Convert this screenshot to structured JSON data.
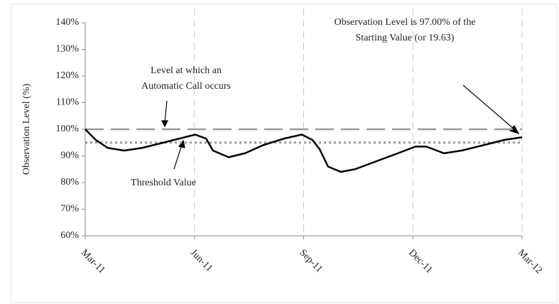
{
  "chart_data": {
    "type": "line",
    "y_label": "Observation Level (%)",
    "xlim": [
      0,
      12
    ],
    "xticks": [
      {
        "value": 0,
        "label": "Mar-11"
      },
      {
        "value": 3,
        "label": "Jun-11"
      },
      {
        "value": 6,
        "label": "Sep-11"
      },
      {
        "value": 9,
        "label": "Dec-11"
      },
      {
        "value": 12,
        "label": "Mar-12"
      }
    ],
    "ylim": [
      60,
      140
    ],
    "yticks": [
      {
        "value": 60,
        "label": "60%"
      },
      {
        "value": 70,
        "label": "70%"
      },
      {
        "value": 80,
        "label": "80%"
      },
      {
        "value": 90,
        "label": "90%"
      },
      {
        "value": 100,
        "label": "100%"
      },
      {
        "value": 110,
        "label": "110%"
      },
      {
        "value": 120,
        "label": "120%"
      },
      {
        "value": 130,
        "label": "130%"
      },
      {
        "value": 140,
        "label": "140%"
      }
    ],
    "grid": "x",
    "x": [
      0,
      0.29,
      0.62,
      1.07,
      1.56,
      2.15,
      2.73,
      3.02,
      3.32,
      3.51,
      3.94,
      4.39,
      4.88,
      5.46,
      5.95,
      6.24,
      6.44,
      6.67,
      7.02,
      7.41,
      8.0,
      8.59,
      9.07,
      9.37,
      9.85,
      10.34,
      10.93,
      11.51,
      12
    ],
    "series": [
      {
        "color": "#000000",
        "values": [
          100,
          96,
          93,
          92,
          93,
          95,
          97,
          98,
          96.5,
          92,
          89.5,
          91,
          94,
          96.5,
          98,
          96,
          92.5,
          86,
          84,
          85,
          88,
          91,
          93.5,
          93.5,
          91,
          92,
          94,
          96,
          97
        ]
      }
    ],
    "reference_lines": [
      {
        "value": 100,
        "color": "#999999",
        "style": "long-dash"
      },
      {
        "value": 95,
        "color": "#999999",
        "style": "dot"
      }
    ],
    "annotations": [
      {
        "lines": [
          "Level at which an",
          "Automatic Call occurs"
        ]
      },
      {
        "lines": [
          "Threshold Value"
        ]
      },
      {
        "lines": [
          "Observation Level is 97.00% of the",
          "Starting Value (or 19.63)"
        ]
      }
    ]
  }
}
